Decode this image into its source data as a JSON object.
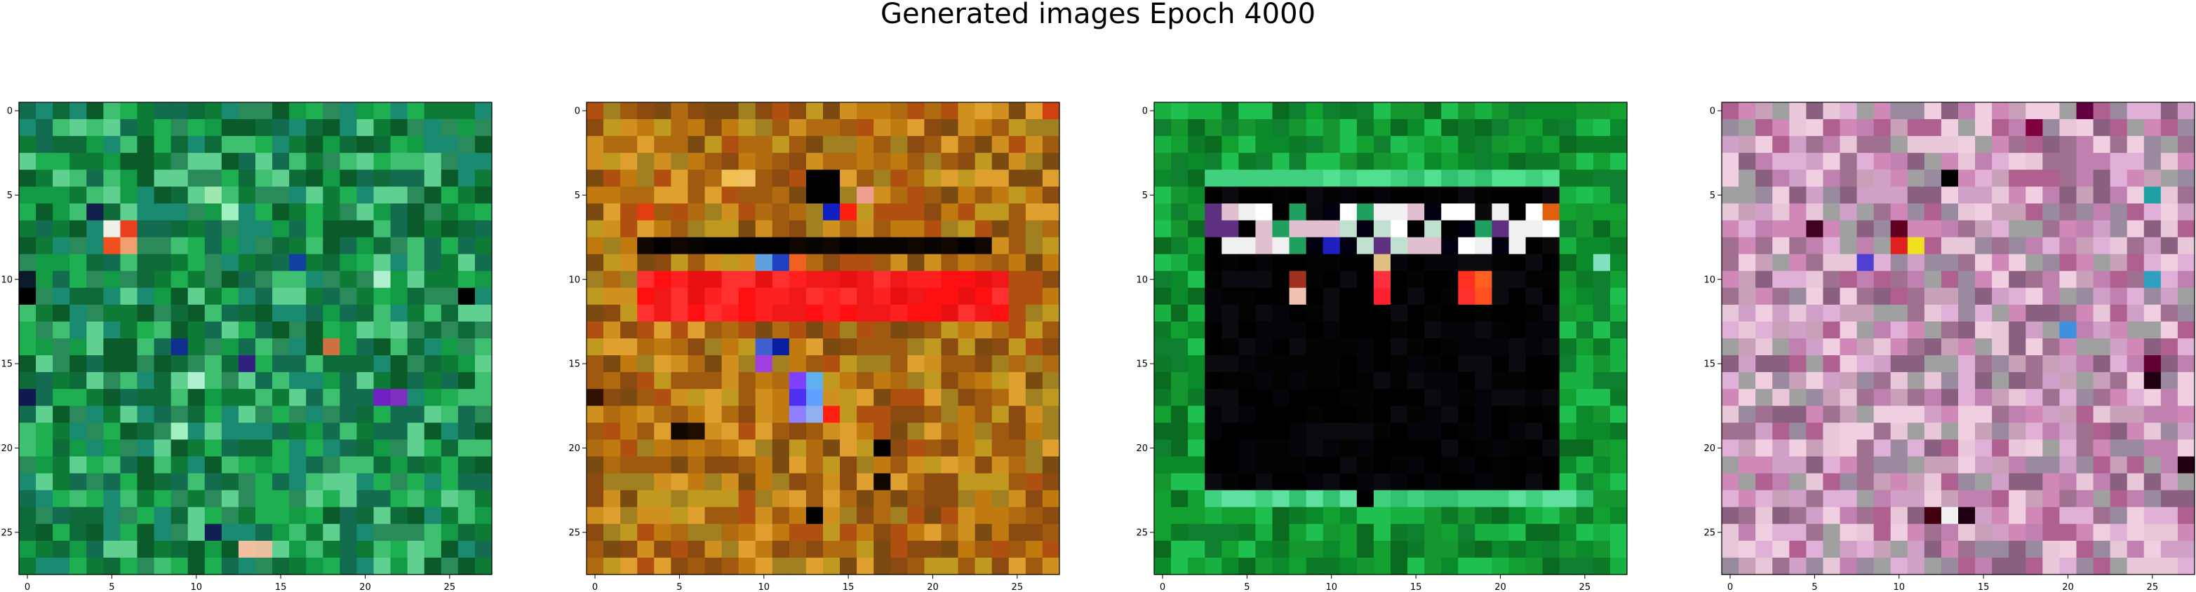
{
  "figure": {
    "title": "Generated images Epoch 4000"
  },
  "chart_data": [
    {
      "type": "heatmap",
      "title": "",
      "xlim": [
        -0.5,
        27.5
      ],
      "ylim": [
        27.5,
        -0.5
      ],
      "x_ticks": [
        "0",
        "5",
        "10",
        "15",
        "20",
        "25"
      ],
      "y_ticks": [
        "0",
        "5",
        "10",
        "15",
        "20",
        "25"
      ],
      "grid": false,
      "palette": [
        "#0a5a2a",
        "#0d7a35",
        "#129a45",
        "#1eb050",
        "#3fc070",
        "#2a8a5a",
        "#0f6a3a",
        "#136b50",
        "#1a8a70",
        "#5fd090"
      ],
      "base_color": "#0f7a3a",
      "features": [
        {
          "kind": "pixel",
          "r": 7,
          "c": 5,
          "color": "#f0f0e8"
        },
        {
          "kind": "pixel",
          "r": 7,
          "c": 6,
          "color": "#e84020"
        },
        {
          "kind": "pixel",
          "r": 8,
          "c": 5,
          "color": "#f05020"
        },
        {
          "kind": "pixel",
          "r": 8,
          "c": 6,
          "color": "#f0a070"
        },
        {
          "kind": "pixel",
          "r": 6,
          "c": 4,
          "color": "#10204a"
        },
        {
          "kind": "pixel",
          "r": 10,
          "c": 0,
          "color": "#0a1a2a"
        },
        {
          "kind": "pixel",
          "r": 11,
          "c": 0,
          "color": "#000000"
        },
        {
          "kind": "pixel",
          "r": 14,
          "c": 9,
          "color": "#103090"
        },
        {
          "kind": "pixel",
          "r": 15,
          "c": 13,
          "color": "#302080"
        },
        {
          "kind": "pixel",
          "r": 14,
          "c": 18,
          "color": "#d07040"
        },
        {
          "kind": "pixel",
          "r": 17,
          "c": 21,
          "color": "#7020c0"
        },
        {
          "kind": "pixel",
          "r": 17,
          "c": 22,
          "color": "#8030c0"
        },
        {
          "kind": "pixel",
          "r": 17,
          "c": 0,
          "color": "#101a50"
        },
        {
          "kind": "pixel",
          "r": 26,
          "c": 13,
          "color": "#f0c0a0"
        },
        {
          "kind": "pixel",
          "r": 26,
          "c": 14,
          "color": "#e8c0a0"
        },
        {
          "kind": "pixel",
          "r": 11,
          "c": 26,
          "color": "#000000"
        },
        {
          "kind": "pixel",
          "r": 9,
          "c": 16,
          "color": "#1040a0"
        },
        {
          "kind": "pixel",
          "r": 5,
          "c": 11,
          "color": "#9ee8b0"
        },
        {
          "kind": "pixel",
          "r": 6,
          "c": 12,
          "color": "#a0f0c0"
        },
        {
          "kind": "pixel",
          "r": 10,
          "c": 21,
          "color": "#b0f0d0"
        },
        {
          "kind": "pixel",
          "r": 16,
          "c": 10,
          "color": "#b0f0d0"
        },
        {
          "kind": "pixel",
          "r": 19,
          "c": 9,
          "color": "#a0f0c0"
        },
        {
          "kind": "pixel",
          "r": 25,
          "c": 11,
          "color": "#102050"
        }
      ]
    },
    {
      "type": "heatmap",
      "title": "",
      "xlim": [
        -0.5,
        27.5
      ],
      "ylim": [
        27.5,
        -0.5
      ],
      "x_ticks": [
        "0",
        "5",
        "10",
        "15",
        "20",
        "25"
      ],
      "y_ticks": [
        "0",
        "5",
        "10",
        "15",
        "20",
        "25"
      ],
      "grid": false,
      "palette": [
        "#c07a10",
        "#a05a10",
        "#d09020",
        "#8a4a10",
        "#b06a10",
        "#c09a20",
        "#a08020",
        "#e0a030",
        "#7a4a10",
        "#b05010"
      ],
      "base_color": "#b07010",
      "features": [
        {
          "kind": "rect",
          "r0": 10,
          "r1": 12,
          "c0": 3,
          "c1": 24,
          "palette": [
            "#ff1010",
            "#ff2020",
            "#e81010",
            "#ff3030",
            "#f01818"
          ]
        },
        {
          "kind": "rect",
          "r0": 8,
          "r1": 8,
          "c0": 3,
          "c1": 23,
          "palette": [
            "#000000",
            "#100800",
            "#080400"
          ]
        },
        {
          "kind": "rect",
          "r0": 4,
          "r1": 5,
          "c0": 13,
          "c1": 14,
          "palette": [
            "#000000"
          ]
        },
        {
          "kind": "pixel",
          "r": 6,
          "c": 14,
          "color": "#1020c0"
        },
        {
          "kind": "pixel",
          "r": 6,
          "c": 3,
          "color": "#e04010"
        },
        {
          "kind": "pixel",
          "r": 6,
          "c": 15,
          "color": "#ff2010"
        },
        {
          "kind": "pixel",
          "r": 5,
          "c": 16,
          "color": "#f0a090"
        },
        {
          "kind": "pixel",
          "r": 9,
          "c": 10,
          "color": "#60a0e0"
        },
        {
          "kind": "pixel",
          "r": 9,
          "c": 11,
          "color": "#2040c0"
        },
        {
          "kind": "pixel",
          "r": 9,
          "c": 12,
          "color": "#f06020"
        },
        {
          "kind": "pixel",
          "r": 14,
          "c": 10,
          "color": "#4060d0"
        },
        {
          "kind": "pixel",
          "r": 14,
          "c": 11,
          "color": "#0820a0"
        },
        {
          "kind": "pixel",
          "r": 15,
          "c": 10,
          "color": "#a040e0"
        },
        {
          "kind": "pixel",
          "r": 16,
          "c": 12,
          "color": "#8040ff"
        },
        {
          "kind": "pixel",
          "r": 16,
          "c": 13,
          "color": "#60b0f0"
        },
        {
          "kind": "pixel",
          "r": 17,
          "c": 12,
          "color": "#5030f0"
        },
        {
          "kind": "pixel",
          "r": 17,
          "c": 13,
          "color": "#60a0ff"
        },
        {
          "kind": "pixel",
          "r": 18,
          "c": 12,
          "color": "#9080ff"
        },
        {
          "kind": "pixel",
          "r": 18,
          "c": 13,
          "color": "#90b0f0"
        },
        {
          "kind": "pixel",
          "r": 18,
          "c": 14,
          "color": "#ff2010"
        },
        {
          "kind": "pixel",
          "r": 24,
          "c": 13,
          "color": "#000000"
        },
        {
          "kind": "pixel",
          "r": 19,
          "c": 5,
          "color": "#100800"
        },
        {
          "kind": "pixel",
          "r": 19,
          "c": 6,
          "color": "#200c00"
        },
        {
          "kind": "pixel",
          "r": 20,
          "c": 17,
          "color": "#000000"
        },
        {
          "kind": "pixel",
          "r": 22,
          "c": 17,
          "color": "#100800"
        },
        {
          "kind": "pixel",
          "r": 17,
          "c": 0,
          "color": "#301000"
        },
        {
          "kind": "pixel",
          "r": 4,
          "c": 8,
          "color": "#f0c050"
        },
        {
          "kind": "pixel",
          "r": 4,
          "c": 9,
          "color": "#f0c060"
        },
        {
          "kind": "pixel",
          "r": 0,
          "c": 27,
          "color": "#d04010"
        }
      ]
    },
    {
      "type": "heatmap",
      "title": "",
      "xlim": [
        -0.5,
        27.5
      ],
      "ylim": [
        27.5,
        -0.5
      ],
      "x_ticks": [
        "0",
        "5",
        "10",
        "15",
        "20",
        "25"
      ],
      "y_ticks": [
        "0",
        "5",
        "10",
        "15",
        "20",
        "25"
      ],
      "grid": false,
      "palette": [
        "#0a8a2a",
        "#12a030",
        "#0c7a26",
        "#18b040",
        "#0a6a20",
        "#20c050",
        "#15962e",
        "#0e8030"
      ],
      "base_color": "#10902e",
      "features": [
        {
          "kind": "rect",
          "r0": 4,
          "r1": 4,
          "c0": 3,
          "c1": 23,
          "palette": [
            "#40d080",
            "#30c070",
            "#50e090"
          ]
        },
        {
          "kind": "rect",
          "r0": 23,
          "r1": 23,
          "c0": 3,
          "c1": 25,
          "palette": [
            "#40d080",
            "#30c070",
            "#60e0a0"
          ]
        },
        {
          "kind": "rect",
          "r0": 5,
          "r1": 22,
          "c0": 3,
          "c1": 23,
          "palette": [
            "#000000",
            "#04040a",
            "#020402",
            "#0a0a10",
            "#000000"
          ]
        },
        {
          "kind": "rect",
          "r0": 6,
          "r1": 8,
          "c0": 3,
          "c1": 23,
          "palette": [
            "#000000",
            "#e0c0d0",
            "#ffffff",
            "#603080",
            "#0a0a0a",
            "#20a060",
            "#f0f0f0",
            "#c0e0d0",
            "#000010"
          ]
        },
        {
          "kind": "pixel",
          "r": 6,
          "c": 23,
          "color": "#e06010"
        },
        {
          "kind": "pixel",
          "r": 8,
          "c": 10,
          "color": "#2020c0"
        },
        {
          "kind": "pixel",
          "r": 9,
          "c": 13,
          "color": "#e0c080"
        },
        {
          "kind": "pixel",
          "r": 10,
          "c": 13,
          "color": "#ff3040"
        },
        {
          "kind": "pixel",
          "r": 11,
          "c": 13,
          "color": "#ff2030"
        },
        {
          "kind": "pixel",
          "r": 10,
          "c": 18,
          "color": "#ff3020"
        },
        {
          "kind": "pixel",
          "r": 11,
          "c": 18,
          "color": "#ff3030"
        },
        {
          "kind": "pixel",
          "r": 10,
          "c": 19,
          "color": "#ff6020"
        },
        {
          "kind": "pixel",
          "r": 11,
          "c": 19,
          "color": "#ff5020"
        },
        {
          "kind": "pixel",
          "r": 11,
          "c": 8,
          "color": "#f0c0b0"
        },
        {
          "kind": "pixel",
          "r": 10,
          "c": 8,
          "color": "#a03020"
        },
        {
          "kind": "pixel",
          "r": 23,
          "c": 12,
          "color": "#000000"
        },
        {
          "kind": "pixel",
          "r": 9,
          "c": 26,
          "color": "#80e0c0"
        }
      ]
    },
    {
      "type": "heatmap",
      "title": "",
      "xlim": [
        -0.5,
        27.5
      ],
      "ylim": [
        27.5,
        -0.5
      ],
      "x_ticks": [
        "0",
        "5",
        "10",
        "15",
        "20",
        "25"
      ],
      "y_ticks": [
        "0",
        "5",
        "10",
        "15",
        "20",
        "25"
      ],
      "grid": false,
      "palette": [
        "#c080b0",
        "#d0a0c8",
        "#a07090",
        "#e0b0d8",
        "#b06090",
        "#f0d0e0",
        "#9a8aa0",
        "#c8a0b8",
        "#d088b8",
        "#e8c8d8",
        "#a0a0a0",
        "#8a6080"
      ],
      "base_color": "#c090b8",
      "features": [
        {
          "kind": "pixel",
          "r": 4,
          "c": 13,
          "color": "#000000"
        },
        {
          "kind": "pixel",
          "r": 8,
          "c": 10,
          "color": "#e02020"
        },
        {
          "kind": "pixel",
          "r": 8,
          "c": 11,
          "color": "#f0e020"
        },
        {
          "kind": "pixel",
          "r": 7,
          "c": 10,
          "color": "#600020"
        },
        {
          "kind": "pixel",
          "r": 7,
          "c": 5,
          "color": "#400020"
        },
        {
          "kind": "pixel",
          "r": 16,
          "c": 25,
          "color": "#200010"
        },
        {
          "kind": "pixel",
          "r": 15,
          "c": 25,
          "color": "#600030"
        },
        {
          "kind": "pixel",
          "r": 24,
          "c": 12,
          "color": "#400010"
        },
        {
          "kind": "pixel",
          "r": 24,
          "c": 13,
          "color": "#f0f0f0"
        },
        {
          "kind": "pixel",
          "r": 24,
          "c": 14,
          "color": "#200010"
        },
        {
          "kind": "pixel",
          "r": 21,
          "c": 27,
          "color": "#200010"
        },
        {
          "kind": "pixel",
          "r": 1,
          "c": 18,
          "color": "#800040"
        },
        {
          "kind": "pixel",
          "r": 0,
          "c": 21,
          "color": "#600040"
        },
        {
          "kind": "pixel",
          "r": 9,
          "c": 8,
          "color": "#5040d0"
        },
        {
          "kind": "pixel",
          "r": 13,
          "c": 20,
          "color": "#4090e0"
        },
        {
          "kind": "pixel",
          "r": 5,
          "c": 25,
          "color": "#20a0a0"
        },
        {
          "kind": "pixel",
          "r": 10,
          "c": 25,
          "color": "#30a0c0"
        }
      ]
    }
  ]
}
